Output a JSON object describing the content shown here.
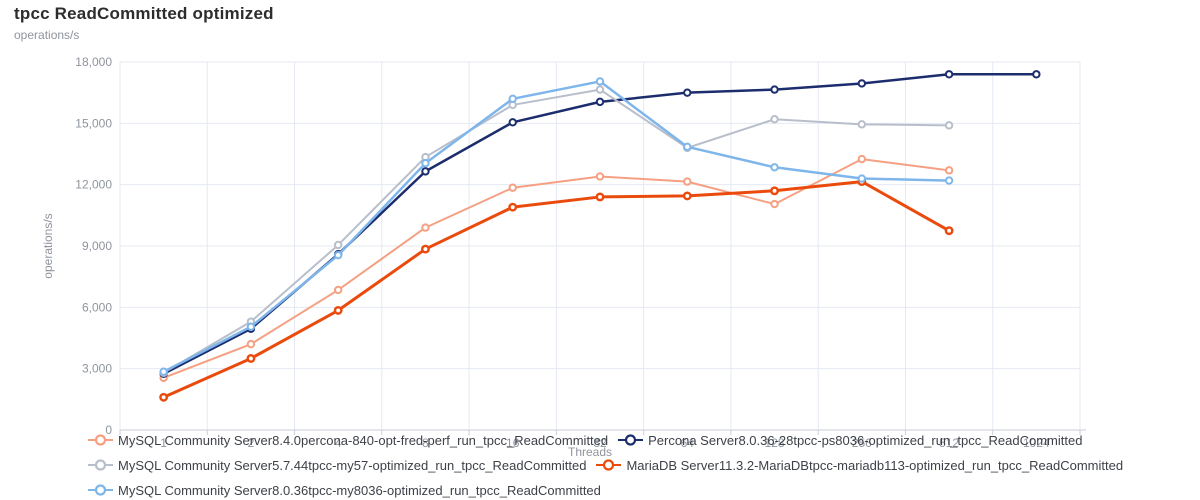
{
  "title": "tpcc ReadCommitted optimized",
  "colors": {
    "grid_line": "#E4E9F2",
    "axis_line": "#C9CED8",
    "tick_label": "#8F949E",
    "axis_name": "#8F949E",
    "legend_text": "#3D4148",
    "title_text": "#2D2D2D",
    "marker_fill": "#FFFFFF"
  },
  "chart_data": {
    "type": "line",
    "title": "tpcc ReadCommitted optimized",
    "xlabel": "Threads",
    "ylabel": "operations/s",
    "x_scale": "categorical-log2-threads",
    "categories": [
      "1",
      "2",
      "4",
      "8",
      "16",
      "32",
      "64",
      "128",
      "256",
      "512",
      "1024"
    ],
    "ylim": [
      0,
      18000
    ],
    "y_ticks": [
      0,
      3000,
      6000,
      9000,
      12000,
      15000,
      18000
    ],
    "grid": true,
    "legend_position": "bottom",
    "series": [
      {
        "name": "MySQL Community Server8.4.0percona-840-opt-fred-perf_run_tpcc_ReadCommitted",
        "color": "#F5A083",
        "line_width": 2,
        "values": [
          2550,
          4200,
          6850,
          9900,
          11850,
          12400,
          12150,
          11050,
          13250,
          12700,
          null
        ]
      },
      {
        "name": "Percona Server8.0.36-28tpcc-ps8036-optimized_run_tpcc_ReadCommitted",
        "color": "#1C2D6E",
        "line_width": 2.5,
        "values": [
          2750,
          4950,
          8600,
          12650,
          15050,
          16050,
          16500,
          16650,
          16950,
          17400,
          17400
        ]
      },
      {
        "name": "MySQL Community Server5.7.44tpcc-my57-optimized_run_tpcc_ReadCommitted",
        "color": "#B8BFCB",
        "line_width": 2,
        "values": [
          2800,
          5300,
          9050,
          13350,
          15900,
          16650,
          13800,
          15200,
          14950,
          14900,
          null
        ]
      },
      {
        "name": "MariaDB Server11.3.2-MariaDBtpcc-mariadb113-optimized_run_tpcc_ReadCommitted",
        "color": "#EA4B0D",
        "line_width": 3,
        "values": [
          1600,
          3500,
          5850,
          8850,
          10900,
          11400,
          11450,
          11700,
          12150,
          9750,
          null
        ]
      },
      {
        "name": "MySQL Community Server8.0.36tpcc-my8036-optimized_run_tpcc_ReadCommitted",
        "color": "#7EB6EB",
        "line_width": 2.5,
        "values": [
          2850,
          5050,
          8550,
          13050,
          16200,
          17050,
          13850,
          12850,
          12300,
          12200,
          null
        ]
      }
    ]
  }
}
